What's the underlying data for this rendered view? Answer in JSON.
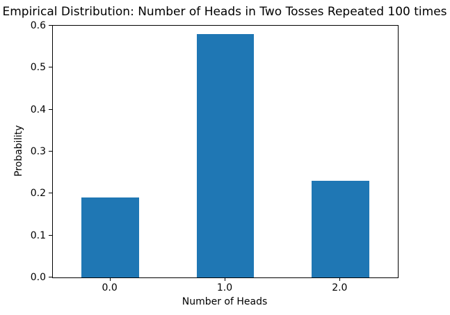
{
  "chart_data": {
    "type": "bar",
    "title": "Empirical Distribution: Number of Heads in Two Tosses Repeated 100 times",
    "xlabel": "Number of Heads",
    "ylabel": "Probability",
    "categories": [
      "0.0",
      "1.0",
      "2.0"
    ],
    "values": [
      0.19,
      0.58,
      0.23
    ],
    "ylim": [
      0.0,
      0.6
    ],
    "yticks": [
      {
        "value": 0.0,
        "label": "0.0"
      },
      {
        "value": 0.1,
        "label": "0.1"
      },
      {
        "value": 0.2,
        "label": "0.2"
      },
      {
        "value": 0.3,
        "label": "0.3"
      },
      {
        "value": 0.4,
        "label": "0.4"
      },
      {
        "value": 0.5,
        "label": "0.5"
      },
      {
        "value": 0.6,
        "label": "0.6"
      }
    ],
    "grid": false,
    "legend": null,
    "bar_color": "#1f77b4",
    "axis_color": "#000000",
    "background_color": "#ffffff",
    "bar_width_fraction": 0.5
  }
}
